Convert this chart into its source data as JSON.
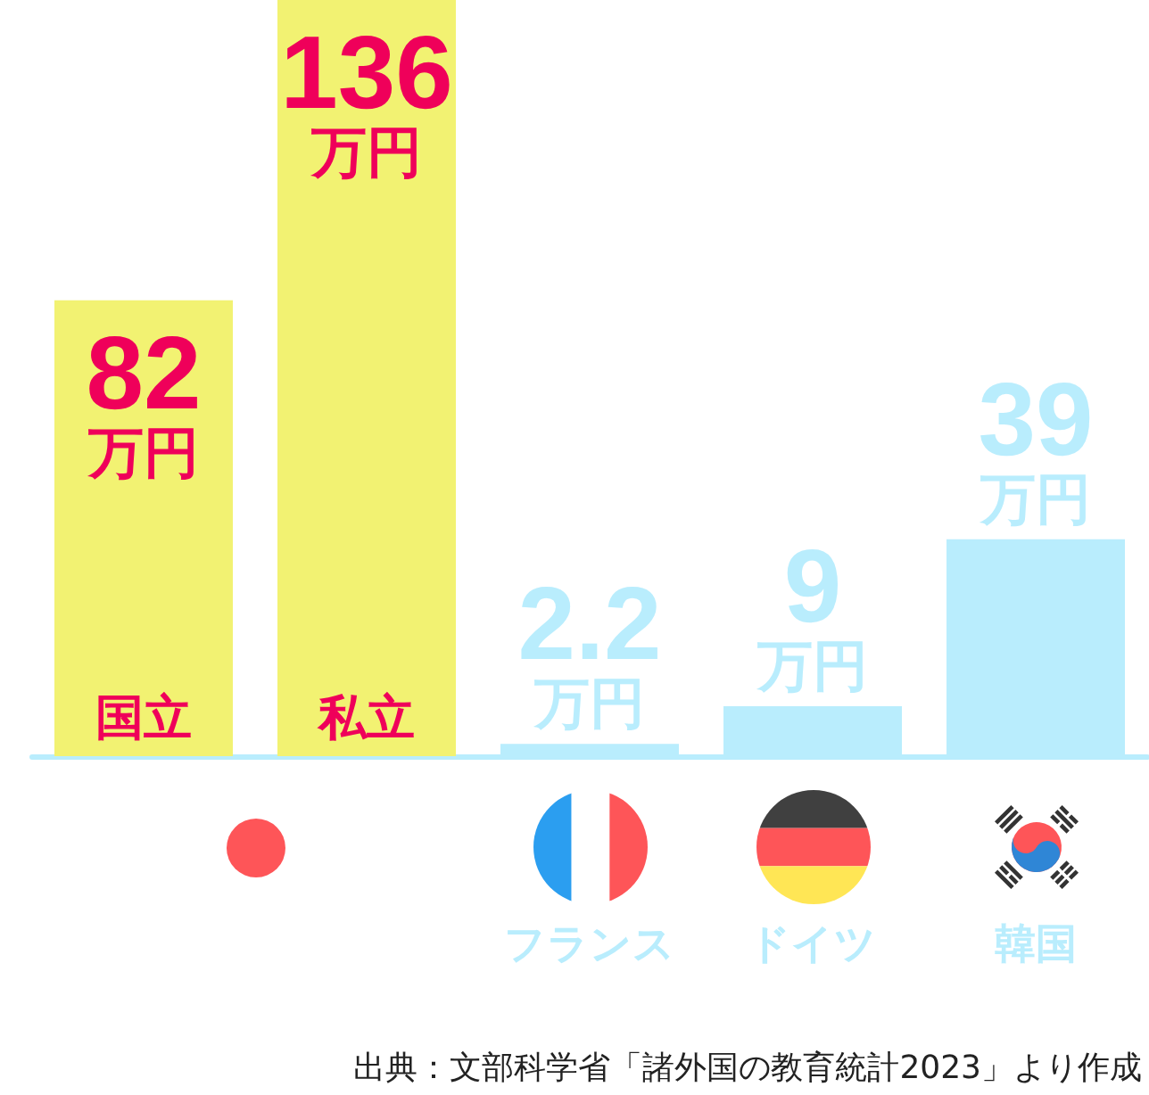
{
  "chart_data": {
    "type": "bar",
    "categories": [
      "国立",
      "私立",
      "フランス",
      "ドイツ",
      "韓国"
    ],
    "values": [
      82,
      136,
      2.2,
      9,
      39
    ],
    "colors": [
      "#f2f272",
      "#f2f272",
      "#b9edfd",
      "#b9edfd",
      "#b9edfd"
    ],
    "value_labels": [
      "82万円",
      "136万円",
      "2.2万円",
      "9万円",
      "39万円"
    ],
    "annotations": [
      "出典：文部科学省「諸外国の教育統計2023」より作成"
    ]
  }
}
